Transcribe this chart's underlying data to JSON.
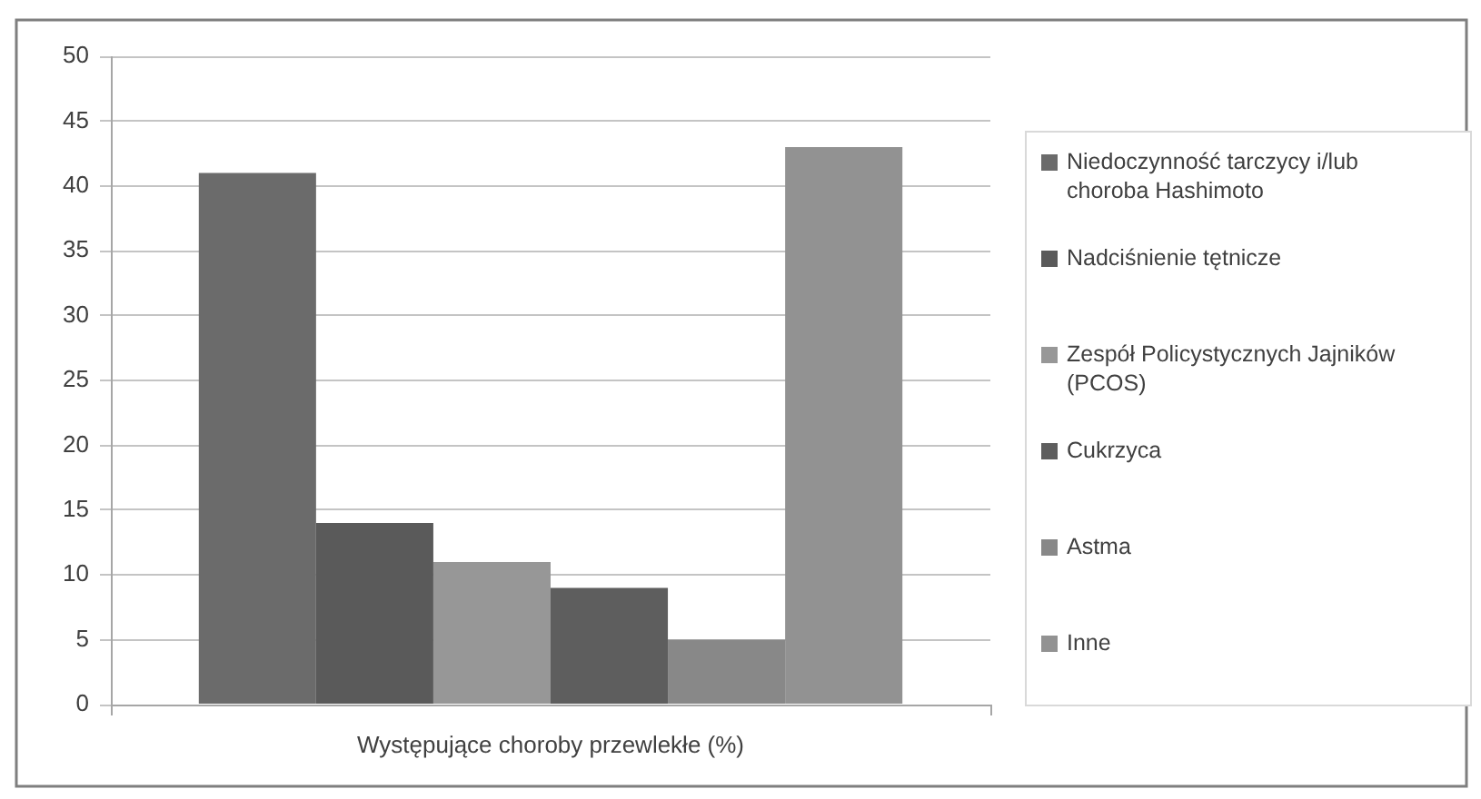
{
  "chart_data": {
    "type": "bar",
    "categories": [
      "Występujące choroby przewlekłe (%)"
    ],
    "series": [
      {
        "name": "Niedoczynność tarczycy i/lub choroba Hashimoto",
        "color": "#6b6b6b",
        "values": [
          41
        ]
      },
      {
        "name": "Nadciśnienie tętnicze",
        "color": "#5a5a5a",
        "values": [
          14
        ]
      },
      {
        "name": "Zespół Policystycznych Jajników (PCOS)",
        "color": "#979797",
        "values": [
          11
        ]
      },
      {
        "name": "Cukrzyca",
        "color": "#5e5e5e",
        "values": [
          9
        ]
      },
      {
        "name": "Astma",
        "color": "#888888",
        "values": [
          5
        ]
      },
      {
        "name": "Inne",
        "color": "#929292",
        "values": [
          43
        ]
      }
    ],
    "ylim": [
      0,
      50
    ],
    "yticks": [
      0,
      5,
      10,
      15,
      20,
      25,
      30,
      35,
      40,
      45,
      50
    ],
    "grid": "y",
    "legend": "right"
  }
}
